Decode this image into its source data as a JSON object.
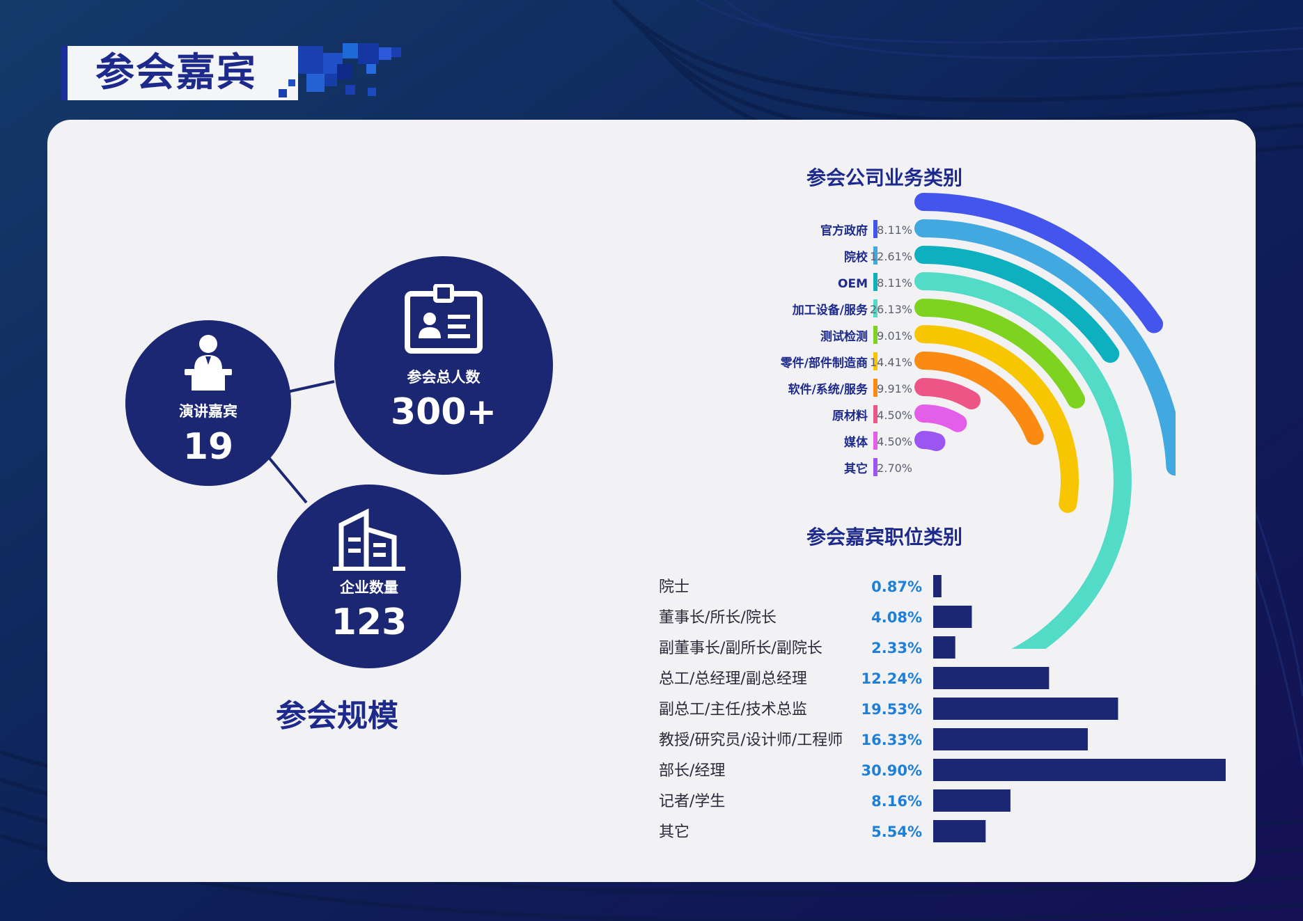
{
  "header": {
    "title": "参会嘉宾"
  },
  "scale": {
    "title": "参会规模",
    "speakers": {
      "label": "演讲嘉宾",
      "value": "19",
      "icon": "speaker-podium-icon"
    },
    "attendees": {
      "label": "参会总人数",
      "value": "300+",
      "icon": "id-badge-icon"
    },
    "companies": {
      "label": "企业数量",
      "value": "123",
      "icon": "building-icon"
    }
  },
  "colors": {
    "primary": "#1b2773",
    "accent": "#1d2a8c",
    "percent_blue": "#1e7fd8"
  },
  "chart_data": [
    {
      "type": "radial-bar",
      "title": "参会公司业务类别",
      "categories": [
        "官方政府",
        "院校",
        "OEM",
        "加工设备/服务",
        "测试检测",
        "零件/部件制造商",
        "软件/系统/服务",
        "原材料",
        "媒体",
        "其它"
      ],
      "values": [
        8.11,
        12.61,
        8.11,
        26.13,
        9.01,
        14.41,
        9.91,
        4.5,
        4.5,
        2.7
      ],
      "labels": [
        "8.11%",
        "12.61%",
        "8.11%",
        "26.13%",
        "9.01%",
        "14.41%",
        "9.91%",
        "4.50%",
        "4.50%",
        "2.70%"
      ],
      "colors": [
        "#4455ee",
        "#42a8e0",
        "#0cb0bf",
        "#52dbc6",
        "#7ed320",
        "#f7c600",
        "#fb8a12",
        "#ec5585",
        "#e35ee9",
        "#9a55f2"
      ],
      "unit": "%"
    },
    {
      "type": "bar",
      "orientation": "horizontal",
      "title": "参会嘉宾职位类别",
      "categories": [
        "院士",
        "董事长/所长/院长",
        "副董事长/副所长/副院长",
        "总工/总经理/副总经理",
        "副总工/主任/技术总监",
        "教授/研究员/设计师/工程师",
        "部长/经理",
        "记者/学生",
        "其它"
      ],
      "values": [
        0.87,
        4.08,
        2.33,
        12.24,
        19.53,
        16.33,
        30.9,
        8.16,
        5.54
      ],
      "labels": [
        "0.87%",
        "4.08%",
        "2.33%",
        "12.24%",
        "19.53%",
        "16.33%",
        "30.90%",
        "8.16%",
        "5.54%"
      ],
      "unit": "%",
      "bar_color": "#1b2773"
    }
  ]
}
